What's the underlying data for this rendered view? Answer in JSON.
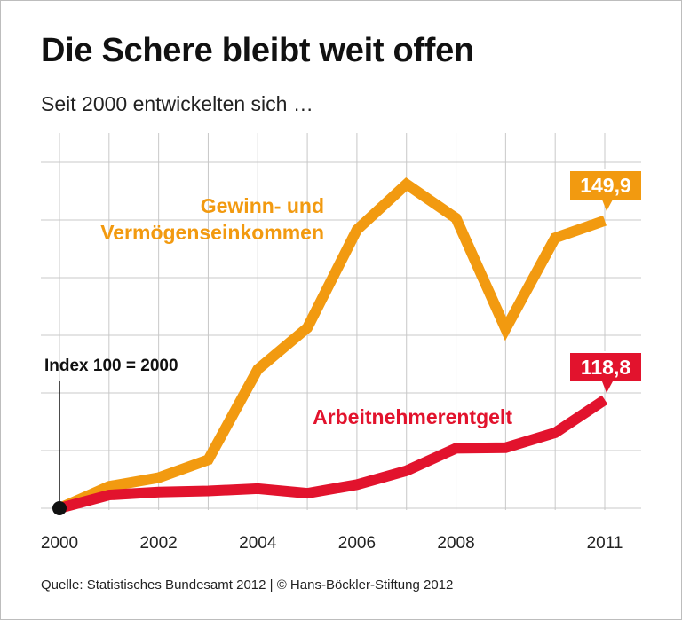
{
  "title": "Die Schere bleibt weit offen",
  "subtitle": "Seit 2000 entwickelten sich …",
  "source": "Quelle: Statistisches Bundesamt 2012 | © Hans-Böckler-Stiftung 2012",
  "colors": {
    "orange": "#f29a10",
    "red": "#e2132d",
    "grid": "#c8c8c8",
    "text": "#111111"
  },
  "chart_data": {
    "type": "line",
    "title": "Die Schere bleibt weit offen",
    "subtitle": "Seit 2000 entwickelten sich …",
    "xlabel": "",
    "ylabel": "",
    "index_note": "Index 100 = 2000",
    "x": [
      2000,
      2001,
      2002,
      2003,
      2004,
      2005,
      2006,
      2007,
      2008,
      2009,
      2010,
      2011
    ],
    "x_ticks": [
      "2000",
      "2002",
      "2004",
      "2006",
      "2008",
      "2011"
    ],
    "ylim": [
      100,
      160
    ],
    "grid": true,
    "series": [
      {
        "name": "Gewinn- und Vermögenseinkommen",
        "label_lines": [
          "Gewinn- und",
          "Vermögenseinkommen"
        ],
        "color": "#f29a10",
        "values": [
          100,
          103.8,
          105.3,
          108.4,
          124.1,
          131.3,
          148.3,
          156.2,
          150.3,
          131.1,
          146.9,
          149.9
        ],
        "end_label": "149,9"
      },
      {
        "name": "Arbeitnehmerentgelt",
        "label_lines": [
          "Arbeitnehmerentgelt"
        ],
        "color": "#e2132d",
        "values": [
          100,
          102.3,
          102.8,
          103.0,
          103.4,
          102.6,
          104.1,
          106.5,
          110.4,
          110.5,
          113.1,
          118.8
        ],
        "end_label": "118,8"
      }
    ]
  }
}
